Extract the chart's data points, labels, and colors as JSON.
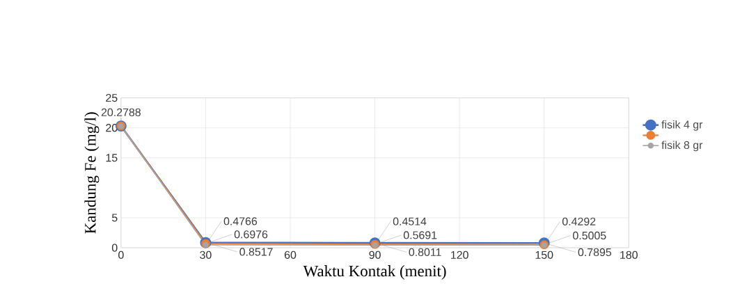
{
  "chart_data": {
    "type": "line",
    "xlabel": "Waktu Kontak (menit)",
    "ylabel": "Kandung Fe (mg/l)",
    "x": [
      0,
      30,
      90,
      150
    ],
    "series": [
      {
        "name": "fisik 4 gr",
        "color": "#4472c4",
        "values": [
          20.3,
          0.8517,
          0.8011,
          0.7895
        ],
        "value_labels": [
          null,
          "0.8517",
          "0.8011",
          "0.7895"
        ]
      },
      {
        "color": "#ed7d31",
        "values": [
          20.3,
          0.6976,
          0.5691,
          0.5005
        ],
        "value_labels": [
          null,
          "0.6976",
          "0.5691",
          "0.5005"
        ]
      },
      {
        "name": "fisik 8 gr",
        "color": "#a5a5a5",
        "values": [
          20.2788,
          0.4766,
          0.4514,
          0.4292
        ],
        "value_labels": [
          "20.2788",
          "0.4766",
          "0.4514",
          "0.4292"
        ]
      }
    ],
    "xlim": [
      0,
      180
    ],
    "xticks": [
      0,
      30,
      60,
      90,
      120,
      150,
      180
    ],
    "ylim": [
      0,
      25
    ],
    "yticks": [
      0,
      5,
      15,
      20,
      25
    ],
    "grid": true,
    "legend": "right",
    "marker": "circle",
    "line_style": "solid"
  }
}
